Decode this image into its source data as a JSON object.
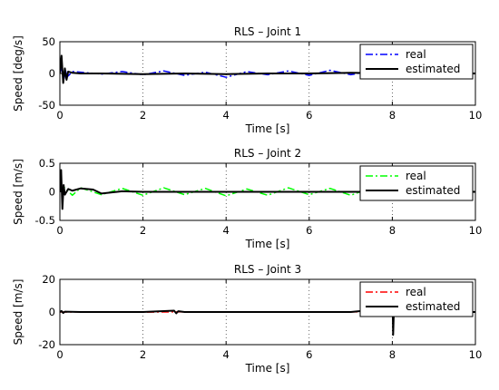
{
  "chart_data": [
    {
      "type": "line",
      "title": "RLS – Joint 1",
      "xlabel": "Time [s]",
      "ylabel": "Speed [deg/s]",
      "xlim": [
        0,
        10
      ],
      "ylim": [
        -50,
        50
      ],
      "xticks": [
        0,
        2,
        4,
        6,
        8,
        10
      ],
      "yticks": [
        -50,
        0,
        50
      ],
      "grid": "x-dotted",
      "legend": "top-right",
      "series": [
        {
          "name": "real",
          "color": "#0000ff",
          "style": "dash-dot",
          "x": [
            0,
            0.05,
            0.1,
            0.15,
            0.2,
            0.3,
            0.5,
            1.0,
            1.5,
            2.0,
            2.5,
            3.0,
            3.5,
            4.0,
            4.5,
            5.0,
            5.5,
            6.0,
            6.5,
            7.0,
            7.5,
            8.0,
            8.5,
            9.0,
            9.5,
            10.0
          ],
          "y": [
            0,
            10,
            -8,
            5,
            -4,
            3,
            2,
            -1,
            3,
            -2,
            4,
            -3,
            2,
            -6,
            3,
            -2,
            4,
            -3,
            5,
            -2,
            4,
            -3,
            4,
            -2,
            3,
            0
          ]
        },
        {
          "name": "estimated",
          "color": "#000000",
          "style": "solid",
          "x": [
            0,
            0.04,
            0.08,
            0.12,
            0.16,
            0.2,
            0.3,
            0.5,
            1.0,
            2.0,
            3.0,
            4.0,
            5.0,
            6.0,
            7.0,
            8.0,
            9.0,
            10.0
          ],
          "y": [
            0,
            28,
            -15,
            8,
            -10,
            3,
            1,
            0,
            0,
            -1,
            0,
            -1,
            0,
            0,
            1,
            0,
            0,
            0
          ]
        }
      ]
    },
    {
      "type": "line",
      "title": "RLS – Joint 2",
      "xlabel": "Time [s]",
      "ylabel": "Speed [m/s]",
      "xlim": [
        0,
        10
      ],
      "ylim": [
        -0.5,
        0.5
      ],
      "xticks": [
        0,
        2,
        4,
        6,
        8,
        10
      ],
      "yticks": [
        -0.5,
        0,
        0.5
      ],
      "grid": "x-dotted",
      "legend": "top-right",
      "series": [
        {
          "name": "real",
          "color": "#00ff00",
          "style": "dash-dot",
          "x": [
            0,
            0.1,
            0.3,
            0.5,
            1.0,
            1.5,
            2.0,
            2.5,
            3.0,
            3.5,
            4.0,
            4.5,
            5.0,
            5.5,
            6.0,
            6.5,
            7.0,
            7.5,
            8.0,
            8.5,
            9.0,
            9.5,
            10.0
          ],
          "y": [
            0,
            0.08,
            -0.06,
            0.07,
            -0.05,
            0.06,
            -0.06,
            0.07,
            -0.05,
            0.06,
            -0.07,
            0.05,
            -0.06,
            0.07,
            -0.05,
            0.06,
            -0.06,
            0.07,
            -0.05,
            0.06,
            -0.06,
            0.05,
            0
          ]
        },
        {
          "name": "estimated",
          "color": "#000000",
          "style": "solid",
          "x": [
            0,
            0.03,
            0.06,
            0.09,
            0.12,
            0.2,
            0.3,
            0.5,
            0.8,
            1.0,
            1.5,
            2.0,
            3.0,
            4.0,
            5.0,
            6.0,
            7.0,
            8.0,
            9.0,
            10.0
          ],
          "y": [
            0,
            0.38,
            -0.3,
            0.12,
            -0.05,
            0.05,
            0.02,
            0.06,
            0.04,
            -0.03,
            0.01,
            0,
            0,
            0,
            0,
            0,
            0,
            0,
            0,
            0
          ]
        }
      ]
    },
    {
      "type": "line",
      "title": "RLS – Joint 3",
      "xlabel": "Time [s]",
      "ylabel": "Speed [m/s]",
      "xlim": [
        0,
        10
      ],
      "ylim": [
        -20,
        20
      ],
      "xticks": [
        0,
        2,
        4,
        6,
        8,
        10
      ],
      "yticks": [
        -20,
        0,
        20
      ],
      "grid": "x-dotted",
      "legend": "top-right",
      "series": [
        {
          "name": "real",
          "color": "#ff0000",
          "style": "dash-dot",
          "x": [
            0,
            1.0,
            2.0,
            3.0,
            4.0,
            5.0,
            6.0,
            7.0,
            8.0,
            9.0,
            10.0
          ],
          "y": [
            0,
            0.1,
            -0.1,
            0.1,
            -0.1,
            0.1,
            -0.1,
            0.1,
            -0.1,
            0.1,
            0
          ]
        },
        {
          "name": "estimated",
          "color": "#000000",
          "style": "solid",
          "x": [
            0,
            0.04,
            0.08,
            0.12,
            0.5,
            1.0,
            2.0,
            2.75,
            2.8,
            2.85,
            3.0,
            4.0,
            5.0,
            6.0,
            7.0,
            7.4,
            7.5,
            7.6,
            8.0,
            8.02,
            8.04,
            8.1,
            9.0,
            10.0
          ],
          "y": [
            0,
            0.6,
            -0.6,
            0.2,
            0,
            0,
            0,
            0.8,
            -0.8,
            0.5,
            0,
            0,
            0,
            0,
            0,
            1.0,
            -1.2,
            0.5,
            18,
            -14,
            3,
            0,
            0,
            0
          ]
        }
      ]
    }
  ]
}
